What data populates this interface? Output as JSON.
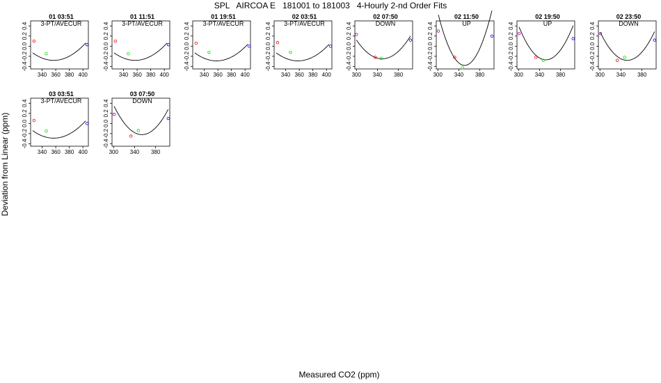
{
  "title": "SPL   AIRCOA E   181001 to 181003   4-Hourly 2-nd Order Fits",
  "xlabel": "Measured CO2 (ppm)",
  "ylabel": "Deviation from Linear (ppm)",
  "colors": {
    "low": "#ff0000",
    "mid": "#00dd00",
    "high": "#0000ff",
    "first": "#aa00aa",
    "curve": "#000000"
  },
  "chart_data": [
    {
      "type": "scatter",
      "title": "01 03:51",
      "subtitle": "3-PT/AVECUR",
      "xlim": [
        323,
        408
      ],
      "ylim": [
        -0.45,
        0.5
      ],
      "xticks": [
        340,
        360,
        380,
        400
      ],
      "yticks": [
        -0.4,
        -0.2,
        0.0,
        0.2,
        0.4
      ],
      "ytick_labels": [
        "-0.4",
        "-0.2",
        "0.0",
        "0.2",
        "0.4"
      ],
      "points": [
        {
          "x": 328,
          "y": 0.1,
          "color": "low"
        },
        {
          "x": 346,
          "y": -0.15,
          "color": "mid"
        },
        {
          "x": 406,
          "y": 0.03,
          "color": "high"
        }
      ],
      "curve": {
        "a": 0.000155,
        "h": 357,
        "k": -0.28,
        "xmin": 326,
        "xmax": 404
      }
    },
    {
      "type": "scatter",
      "title": "01 11:51",
      "subtitle": "3-PT/AVECUR",
      "xlim": [
        323,
        408
      ],
      "ylim": [
        -0.45,
        0.5
      ],
      "xticks": [
        340,
        360,
        380,
        400
      ],
      "yticks": [
        -0.4,
        -0.2,
        0.0,
        0.2,
        0.4
      ],
      "ytick_labels": [
        "-0.4",
        "-0.2",
        "0.0",
        "0.2",
        "0.4"
      ],
      "points": [
        {
          "x": 328,
          "y": 0.1,
          "color": "low"
        },
        {
          "x": 347,
          "y": -0.15,
          "color": "mid"
        },
        {
          "x": 406,
          "y": 0.03,
          "color": "high"
        }
      ],
      "curve": {
        "a": 0.000155,
        "h": 357,
        "k": -0.28,
        "xmin": 326,
        "xmax": 404
      }
    },
    {
      "type": "scatter",
      "title": "01 19:51",
      "subtitle": "3-PT/AVECUR",
      "xlim": [
        323,
        408
      ],
      "ylim": [
        -0.45,
        0.5
      ],
      "xticks": [
        340,
        360,
        380,
        400
      ],
      "yticks": [
        -0.4,
        -0.2,
        0.0,
        0.2,
        0.4
      ],
      "ytick_labels": [
        "-0.4",
        "-0.2",
        "0.0",
        "0.2",
        "0.4"
      ],
      "points": [
        {
          "x": 328,
          "y": 0.06,
          "color": "low"
        },
        {
          "x": 347,
          "y": -0.12,
          "color": "mid"
        },
        {
          "x": 406,
          "y": 0.0,
          "color": "high"
        }
      ],
      "curve": {
        "a": 0.000155,
        "h": 358,
        "k": -0.29,
        "xmin": 326,
        "xmax": 404
      }
    },
    {
      "type": "scatter",
      "title": "02 03:51",
      "subtitle": "3-PT/AVECUR",
      "xlim": [
        323,
        408
      ],
      "ylim": [
        -0.45,
        0.5
      ],
      "xticks": [
        340,
        360,
        380,
        400
      ],
      "yticks": [
        -0.4,
        -0.2,
        0.0,
        0.2,
        0.4
      ],
      "ytick_labels": [
        "-0.4",
        "-0.2",
        "0.0",
        "0.2",
        "0.4"
      ],
      "points": [
        {
          "x": 328,
          "y": 0.07,
          "color": "low"
        },
        {
          "x": 347,
          "y": -0.12,
          "color": "mid"
        },
        {
          "x": 406,
          "y": 0.0,
          "color": "high"
        }
      ],
      "curve": {
        "a": 0.000155,
        "h": 358,
        "k": -0.29,
        "xmin": 326,
        "xmax": 404
      }
    },
    {
      "type": "scatter",
      "title": "02 07:50",
      "subtitle": "DOWN",
      "xlim": [
        297,
        407
      ],
      "ylim": [
        -0.45,
        0.5
      ],
      "xticks": [
        300,
        340,
        380
      ],
      "yticks": [
        -0.4,
        -0.2,
        0.0,
        0.2,
        0.4
      ],
      "ytick_labels": [
        "-0.4",
        "-0.2",
        "0.0",
        "0.2",
        "0.4"
      ],
      "points": [
        {
          "x": 300,
          "y": 0.23,
          "color": "first"
        },
        {
          "x": 336,
          "y": -0.22,
          "color": "low"
        },
        {
          "x": 347,
          "y": -0.24,
          "color": "mid"
        },
        {
          "x": 403,
          "y": 0.12,
          "color": "high"
        }
      ],
      "curve": {
        "a": 0.000155,
        "h": 349,
        "k": -0.25,
        "xmin": 300,
        "xmax": 403
      }
    },
    {
      "type": "scatter",
      "title": "02 11:50",
      "subtitle": "UP",
      "xlim": [
        297,
        407
      ],
      "ylim": [
        -0.45,
        0.5
      ],
      "xticks": [
        300,
        340,
        380
      ],
      "yticks": [
        -0.4,
        -0.2,
        0.0,
        0.2,
        0.4
      ],
      "ytick_labels": [
        "-0.4",
        "-0.2",
        "0.0",
        "0.2",
        "0.4"
      ],
      "points": [
        {
          "x": 301,
          "y": 0.3,
          "color": "first"
        },
        {
          "x": 332,
          "y": -0.22,
          "color": "low"
        },
        {
          "x": 347,
          "y": -0.43,
          "color": "mid"
        },
        {
          "x": 403,
          "y": 0.2,
          "color": "high"
        }
      ],
      "curve": {
        "a": 0.0004,
        "h": 351,
        "k": -0.38,
        "xmin": 301,
        "xmax": 403
      }
    },
    {
      "type": "scatter",
      "title": "02 19:50",
      "subtitle": "UP",
      "xlim": [
        297,
        407
      ],
      "ylim": [
        -0.45,
        0.5
      ],
      "xticks": [
        300,
        340,
        380
      ],
      "yticks": [
        -0.4,
        -0.2,
        0.0,
        0.2,
        0.4
      ],
      "ytick_labels": [
        "-0.4",
        "-0.2",
        "0.0",
        "0.2",
        "0.4"
      ],
      "points": [
        {
          "x": 301,
          "y": 0.25,
          "color": "first"
        },
        {
          "x": 333,
          "y": -0.22,
          "color": "low"
        },
        {
          "x": 347,
          "y": -0.28,
          "color": "mid"
        },
        {
          "x": 404,
          "y": 0.15,
          "color": "high"
        }
      ],
      "curve": {
        "a": 0.00025,
        "h": 352,
        "k": -0.27,
        "xmin": 301,
        "xmax": 404
      }
    },
    {
      "type": "scatter",
      "title": "02 23:50",
      "subtitle": "DOWN",
      "xlim": [
        297,
        407
      ],
      "ylim": [
        -0.45,
        0.5
      ],
      "xticks": [
        300,
        340,
        380
      ],
      "yticks": [
        -0.4,
        -0.2,
        0.0,
        0.2,
        0.4
      ],
      "ytick_labels": [
        "-0.4",
        "-0.2",
        "0.0",
        "0.2",
        "0.4"
      ],
      "points": [
        {
          "x": 301,
          "y": 0.25,
          "color": "first"
        },
        {
          "x": 333,
          "y": -0.28,
          "color": "low"
        },
        {
          "x": 347,
          "y": -0.22,
          "color": "mid"
        },
        {
          "x": 404,
          "y": 0.12,
          "color": "high"
        }
      ],
      "curve": {
        "a": 0.00021,
        "h": 352,
        "k": -0.28,
        "xmin": 301,
        "xmax": 404
      }
    },
    {
      "type": "scatter",
      "title": "03 03:51",
      "subtitle": "3-PT/AVECUR",
      "xlim": [
        323,
        408
      ],
      "ylim": [
        -0.45,
        0.5
      ],
      "xticks": [
        340,
        360,
        380,
        400
      ],
      "yticks": [
        -0.4,
        -0.2,
        0.0,
        0.2,
        0.4
      ],
      "ytick_labels": [
        "-0.4",
        "-0.2",
        "0.0",
        "0.2",
        "0.4"
      ],
      "points": [
        {
          "x": 328,
          "y": 0.06,
          "color": "low"
        },
        {
          "x": 346,
          "y": -0.15,
          "color": "mid"
        },
        {
          "x": 406,
          "y": 0.0,
          "color": "high"
        }
      ],
      "curve": {
        "a": 0.000155,
        "h": 357,
        "k": -0.29,
        "xmin": 326,
        "xmax": 404
      }
    },
    {
      "type": "scatter",
      "title": "03 07:50",
      "subtitle": "DOWN",
      "xlim": [
        297,
        407
      ],
      "ylim": [
        -0.45,
        0.5
      ],
      "xticks": [
        300,
        340,
        380
      ],
      "yticks": [
        -0.4,
        -0.2,
        0.0,
        0.2,
        0.4
      ],
      "ytick_labels": [
        "-0.4",
        "-0.2",
        "0.0",
        "0.2",
        "0.4"
      ],
      "points": [
        {
          "x": 301,
          "y": 0.18,
          "color": "first"
        },
        {
          "x": 333,
          "y": -0.25,
          "color": "low"
        },
        {
          "x": 347,
          "y": -0.14,
          "color": "mid"
        },
        {
          "x": 404,
          "y": 0.1,
          "color": "high"
        }
      ],
      "curve": {
        "a": 0.0002,
        "h": 354,
        "k": -0.22,
        "xmin": 301,
        "xmax": 404
      }
    }
  ]
}
